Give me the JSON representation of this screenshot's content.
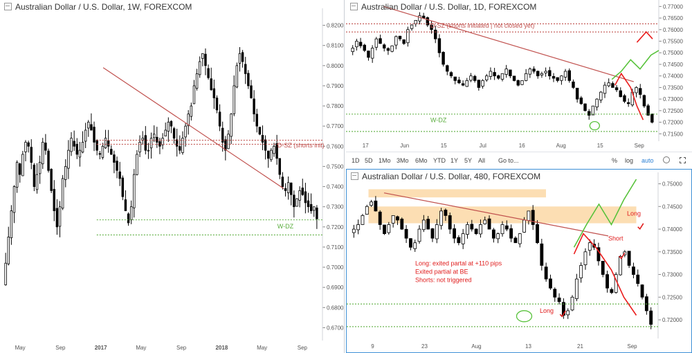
{
  "weekly": {
    "title": "Australian Dollar / U.S. Dollar, 1W, FOREXCOM",
    "y_ticks": [
      "0.8200",
      "0.8100",
      "0.8000",
      "0.7900",
      "0.7800",
      "0.7700",
      "0.7600",
      "0.7500",
      "0.7400",
      "0.7300",
      "0.7200",
      "0.7100",
      "0.7000",
      "0.6900",
      "0.6800",
      "0.6700"
    ],
    "x_ticks": [
      "May",
      "Sep",
      "2017",
      "May",
      "Sep",
      "2018",
      "May",
      "Sep"
    ],
    "annotations": {
      "dsz": "D-SZ (shorts init)",
      "wdz": "W-DZ"
    }
  },
  "daily": {
    "title": "Australian Dollar / U.S. Dollar, 1D, FOREXCOM",
    "y_ticks": [
      "0.77000",
      "0.76500",
      "0.76000",
      "0.75500",
      "0.75000",
      "0.74500",
      "0.74000",
      "0.73500",
      "0.73000",
      "0.72500",
      "0.72000",
      "0.71500"
    ],
    "x_ticks": [
      "17",
      "Jun",
      "15",
      "Jul",
      "16",
      "Aug",
      "15",
      "Sep"
    ],
    "annotations": {
      "dsz": "D-SZ (shorts initiated | not closed yet)",
      "wdz": "W-DZ"
    },
    "toolbar": {
      "ranges": [
        "1D",
        "5D",
        "1Mo",
        "3Mo",
        "6Mo",
        "YTD",
        "1Y",
        "5Y",
        "All"
      ],
      "goto": "Go to...",
      "percent": "%",
      "log": "log",
      "auto": "auto"
    }
  },
  "h4": {
    "title": "Australian Dollar / U.S. Dollar, 480, FOREXCOM",
    "y_ticks": [
      "0.75000",
      "0.74500",
      "0.74000",
      "0.73500",
      "0.73000",
      "0.72500",
      "0.72000"
    ],
    "x_ticks": [
      "9",
      "23",
      "Aug",
      "13",
      "21",
      "Sep"
    ],
    "notes": [
      "Long: exited partal at +110 pips",
      "Exited partial at BE",
      "Shorts: not triggered"
    ],
    "labels": {
      "long1": "Long",
      "long2": "Long",
      "short": "Short"
    }
  },
  "colors": {
    "candle": "#000000",
    "trendline": "#c0504d",
    "supply": "#c0504d",
    "demand": "#5aad3e",
    "zone_fill": "#fbd8a6",
    "path_up": "#57c23a",
    "path_down": "#ea1c1c"
  },
  "chart_data": [
    {
      "type": "candlestick",
      "symbol": "AUDUSD",
      "timeframe": "1W",
      "title": "Australian Dollar / U.S. Dollar, 1W, FOREXCOM",
      "ylim": [
        0.665,
        0.825
      ],
      "x_labels": [
        "May",
        "Sep",
        "2017",
        "May",
        "Sep",
        "2018",
        "May",
        "Sep"
      ],
      "close_path": [
        0.69,
        0.702,
        0.715,
        0.728,
        0.74,
        0.752,
        0.746,
        0.756,
        0.762,
        0.76,
        0.752,
        0.74,
        0.746,
        0.752,
        0.762,
        0.758,
        0.748,
        0.738,
        0.728,
        0.72,
        0.73,
        0.744,
        0.75,
        0.758,
        0.764,
        0.76,
        0.756,
        0.758,
        0.762,
        0.768,
        0.772,
        0.768,
        0.762,
        0.758,
        0.756,
        0.76,
        0.764,
        0.76,
        0.756,
        0.752,
        0.748,
        0.744,
        0.735,
        0.728,
        0.722,
        0.73,
        0.746,
        0.756,
        0.762,
        0.764,
        0.758,
        0.758,
        0.764,
        0.766,
        0.762,
        0.76,
        0.764,
        0.768,
        0.772,
        0.77,
        0.764,
        0.76,
        0.758,
        0.764,
        0.77,
        0.776,
        0.78,
        0.79,
        0.796,
        0.802,
        0.806,
        0.8,
        0.794,
        0.788,
        0.784,
        0.778,
        0.77,
        0.762,
        0.758,
        0.766,
        0.776,
        0.79,
        0.8,
        0.806,
        0.802,
        0.796,
        0.79,
        0.784,
        0.776,
        0.77,
        0.766,
        0.762,
        0.758,
        0.754,
        0.758,
        0.76,
        0.754,
        0.746,
        0.74,
        0.738,
        0.742,
        0.736,
        0.73,
        0.734,
        0.738,
        0.736,
        0.732,
        0.73,
        0.728,
        0.73,
        0.724
      ],
      "annotations": [
        {
          "type": "zone-line",
          "name": "D-SZ (shorts init)",
          "price": 0.763,
          "color": "#c0504d"
        },
        {
          "type": "zone-line",
          "name": "D-SZ (shorts init)",
          "price": 0.761,
          "color": "#c0504d"
        },
        {
          "type": "zone-line",
          "name": "W-DZ",
          "price": 0.7235,
          "color": "#5aad3e"
        },
        {
          "type": "zone-line",
          "name": "W-DZ",
          "price": 0.716,
          "color": "#5aad3e"
        },
        {
          "type": "trendline",
          "from": [
            0.32,
            0.799
          ],
          "to": [
            0.88,
            0.739
          ],
          "color": "#c0504d"
        }
      ]
    },
    {
      "type": "candlestick",
      "symbol": "AUDUSD",
      "timeframe": "1D",
      "title": "Australian Dollar / U.S. Dollar, 1D, FOREXCOM",
      "ylim": [
        0.713,
        0.771
      ],
      "x_labels": [
        "17",
        "Jun",
        "15",
        "Jul",
        "16",
        "Aug",
        "15",
        "Sep"
      ],
      "close_path": [
        0.75,
        0.752,
        0.755,
        0.753,
        0.751,
        0.748,
        0.752,
        0.756,
        0.754,
        0.752,
        0.751,
        0.753,
        0.757,
        0.756,
        0.754,
        0.76,
        0.762,
        0.764,
        0.766,
        0.765,
        0.762,
        0.76,
        0.756,
        0.75,
        0.745,
        0.742,
        0.74,
        0.738,
        0.737,
        0.736,
        0.738,
        0.74,
        0.738,
        0.735,
        0.738,
        0.74,
        0.742,
        0.74,
        0.739,
        0.741,
        0.743,
        0.74,
        0.738,
        0.736,
        0.738,
        0.741,
        0.743,
        0.742,
        0.74,
        0.741,
        0.742,
        0.74,
        0.739,
        0.738,
        0.74,
        0.742,
        0.738,
        0.735,
        0.73,
        0.728,
        0.725,
        0.723,
        0.727,
        0.73,
        0.733,
        0.736,
        0.737,
        0.735,
        0.734,
        0.731,
        0.729,
        0.728,
        0.733,
        0.735,
        0.732,
        0.727,
        0.723,
        0.72
      ],
      "annotations": [
        {
          "type": "zone-line",
          "name": "D-SZ (shorts initiated | not closed yet)",
          "price": 0.7625,
          "color": "#c0504d"
        },
        {
          "type": "zone-line",
          "name": "D-SZ (shorts initiated | not closed yet)",
          "price": 0.759,
          "color": "#c0504d"
        },
        {
          "type": "zone-line",
          "name": "W-DZ",
          "price": 0.7235,
          "color": "#5aad3e"
        },
        {
          "type": "zone-line",
          "name": "W-DZ",
          "price": 0.716,
          "color": "#5aad3e"
        },
        {
          "type": "trendline",
          "from": [
            0.12,
            0.77
          ],
          "to": [
            0.92,
            0.7375
          ],
          "color": "#c0504d"
        },
        {
          "type": "projection-up",
          "points": [
            [
              0.85,
              0.7385
            ],
            [
              0.88,
              0.742
            ],
            [
              0.91,
              0.747
            ],
            [
              0.94,
              0.743
            ],
            [
              0.975,
              0.749
            ],
            [
              1.0,
              0.751
            ]
          ],
          "color": "#57c23a"
        },
        {
          "type": "projection-down",
          "points": [
            [
              0.86,
              0.736
            ],
            [
              0.88,
              0.741
            ],
            [
              0.91,
              0.735
            ],
            [
              0.93,
              0.727
            ],
            [
              0.95,
              0.721
            ]
          ],
          "color": "#ea1c1c"
        },
        {
          "type": "projection-down",
          "points": [
            [
              0.93,
              0.7545
            ],
            [
              0.96,
              0.759
            ],
            [
              0.98,
              0.756
            ]
          ],
          "color": "#ea1c1c"
        }
      ]
    },
    {
      "type": "candlestick",
      "symbol": "AUDUSD",
      "timeframe": "480",
      "title": "Australian Dollar / U.S. Dollar, 480, FOREXCOM",
      "ylim": [
        0.7165,
        0.751
      ],
      "x_labels": [
        "9",
        "23",
        "Aug",
        "13",
        "21",
        "Sep"
      ],
      "close_path": [
        0.739,
        0.74,
        0.741,
        0.743,
        0.745,
        0.746,
        0.744,
        0.741,
        0.739,
        0.741,
        0.743,
        0.742,
        0.74,
        0.738,
        0.736,
        0.737,
        0.74,
        0.742,
        0.74,
        0.738,
        0.741,
        0.744,
        0.743,
        0.74,
        0.738,
        0.737,
        0.739,
        0.741,
        0.74,
        0.739,
        0.741,
        0.742,
        0.74,
        0.738,
        0.739,
        0.741,
        0.74,
        0.738,
        0.737,
        0.739,
        0.742,
        0.744,
        0.741,
        0.737,
        0.732,
        0.729,
        0.727,
        0.725,
        0.724,
        0.721,
        0.722,
        0.725,
        0.729,
        0.732,
        0.735,
        0.737,
        0.736,
        0.733,
        0.73,
        0.727,
        0.726,
        0.73,
        0.734,
        0.735,
        0.732,
        0.73,
        0.728,
        0.725,
        0.722,
        0.719
      ],
      "annotations": [
        {
          "type": "zone",
          "name": "supply-zone-upper",
          "from_price": 0.747,
          "to_price": 0.7488,
          "from_x": 0.07,
          "to_x": 0.64
        },
        {
          "type": "zone",
          "name": "supply-zone-lower",
          "from_price": 0.7413,
          "to_price": 0.745,
          "from_x": 0.07,
          "to_x": 0.93
        },
        {
          "type": "trendline",
          "from": [
            0.12,
            0.748
          ],
          "to": [
            0.84,
            0.7385
          ],
          "color": "#c0504d"
        },
        {
          "type": "zone-line",
          "name": "W-DZ",
          "price": 0.7235,
          "color": "#5aad3e"
        },
        {
          "type": "zone-line",
          "name": "W-DZ",
          "price": 0.7185,
          "color": "#5aad3e"
        },
        {
          "type": "projection-up",
          "points": [
            [
              0.73,
              0.736
            ],
            [
              0.77,
              0.741
            ],
            [
              0.81,
              0.7455
            ],
            [
              0.85,
              0.741
            ],
            [
              0.89,
              0.7465
            ],
            [
              0.93,
              0.751
            ]
          ],
          "color": "#57c23a"
        },
        {
          "type": "projection-down",
          "points": [
            [
              0.73,
              0.7345
            ],
            [
              0.76,
              0.739
            ],
            [
              0.8,
              0.736
            ],
            [
              0.85,
              0.731
            ],
            [
              0.89,
              0.725
            ],
            [
              0.93,
              0.721
            ]
          ],
          "color": "#ea1c1c"
        }
      ],
      "notes": [
        "Long: exited partal at +110 pips",
        "Exited partial at BE",
        "Shorts: not triggered"
      ]
    }
  ]
}
